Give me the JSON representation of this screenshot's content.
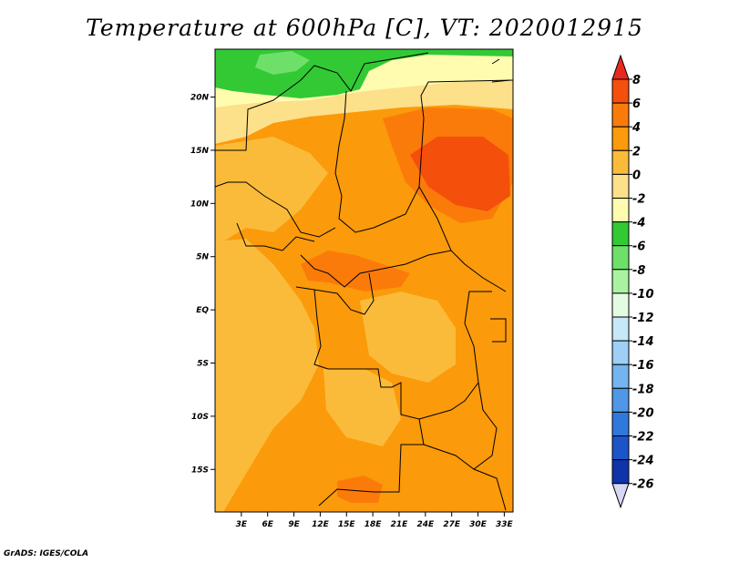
{
  "title": "Temperature at 600hPa [C], VT: 2020012915",
  "credit": "GrADS: IGES/COLA",
  "map": {
    "lat_range": [
      -19,
      24.5
    ],
    "lon_range": [
      0,
      34
    ],
    "lat_ticks": [
      {
        "value": 20,
        "label": "20N"
      },
      {
        "value": 15,
        "label": "15N"
      },
      {
        "value": 10,
        "label": "10N"
      },
      {
        "value": 5,
        "label": "5N"
      },
      {
        "value": 0,
        "label": "EQ"
      },
      {
        "value": -5,
        "label": "5S"
      },
      {
        "value": -10,
        "label": "10S"
      },
      {
        "value": -15,
        "label": "15S"
      }
    ],
    "lon_ticks": [
      {
        "value": 3,
        "label": "3E"
      },
      {
        "value": 6,
        "label": "6E"
      },
      {
        "value": 9,
        "label": "9E"
      },
      {
        "value": 12,
        "label": "12E"
      },
      {
        "value": 15,
        "label": "15E"
      },
      {
        "value": 18,
        "label": "18E"
      },
      {
        "value": 21,
        "label": "21E"
      },
      {
        "value": 24,
        "label": "24E"
      },
      {
        "value": 27,
        "label": "27E"
      },
      {
        "value": 30,
        "label": "30E"
      },
      {
        "value": 33,
        "label": "33E"
      }
    ]
  },
  "colorbar": {
    "levels": [
      "8",
      "6",
      "4",
      "2",
      "0",
      "-2",
      "-4",
      "-6",
      "-8",
      "-10",
      "-12",
      "-14",
      "-16",
      "-18",
      "-20",
      "-22",
      "-24",
      "-26"
    ],
    "colors": [
      "#e62a1b",
      "#f54f0c",
      "#fb7b0a",
      "#fb9a0a",
      "#fbbb3a",
      "#fde08a",
      "#fffcb0",
      "#32c935",
      "#6ee06a",
      "#a9f2a1",
      "#e3fbe3",
      "#c6e8f8",
      "#9dd0f4",
      "#73b5ee",
      "#4e98e6",
      "#2f78dc",
      "#1c55c8",
      "#0f33a8",
      "#0a1f6e",
      "#d8d8f4"
    ]
  }
}
